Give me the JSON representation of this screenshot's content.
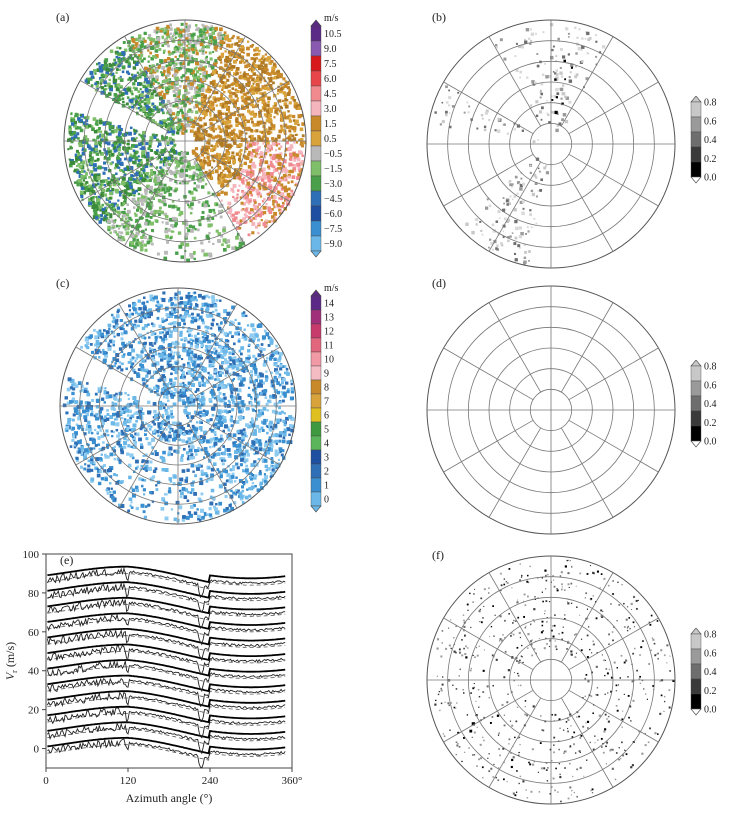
{
  "chart_data": [
    {
      "panel": "(a)",
      "type": "heatmap",
      "projection": "polar",
      "colorbar": {
        "unit": "m/s",
        "ticks": [
          "10.5",
          "9.0",
          "7.5",
          "6.0",
          "4.5",
          "3.0",
          "1.5",
          "0.5",
          "−0.5",
          "−1.5",
          "−3.0",
          "−4.5",
          "−6.0",
          "−7.5",
          "−9.0"
        ],
        "colors": [
          "#5b2a86",
          "#8a5ab0",
          "#d7191c",
          "#e8454a",
          "#f08a8f",
          "#f5b5bd",
          "#c8892a",
          "#d9a33c",
          "#b9b9b9",
          "#7fbf6a",
          "#4aa04a",
          "#2f6fb5",
          "#1f4fa0",
          "#3a8fd0",
          "#6bb8e8"
        ]
      },
      "grid_rings": 6,
      "grid_spokes": 12
    },
    {
      "panel": "(b)",
      "type": "heatmap",
      "projection": "polar",
      "colorbar": {
        "ticks": [
          "0.8",
          "0.6",
          "0.4",
          "0.2",
          "0.0"
        ],
        "colors": [
          "#c8c8c8",
          "#9a9a9a",
          "#6e6e6e",
          "#3a3a3a",
          "#000000"
        ]
      },
      "grid_rings": 6,
      "grid_spokes": 12
    },
    {
      "panel": "(c)",
      "type": "heatmap",
      "projection": "polar",
      "colorbar": {
        "unit": "m/s",
        "ticks": [
          "14",
          "13",
          "12",
          "11",
          "10",
          "9",
          "8",
          "7",
          "6",
          "5",
          "4",
          "3",
          "2",
          "1",
          "0"
        ],
        "colors": [
          "#5b2a86",
          "#a0307a",
          "#c73a6c",
          "#e2667e",
          "#f19aa6",
          "#f6bcc4",
          "#c8892a",
          "#d9a33c",
          "#e0c020",
          "#3f9a3f",
          "#5bb55b",
          "#1f4fa0",
          "#2f6fb5",
          "#3a8fd0",
          "#6bb8e8"
        ]
      },
      "grid_rings": 6,
      "grid_spokes": 12
    },
    {
      "panel": "(d)",
      "type": "heatmap",
      "projection": "polar",
      "colorbar": {
        "ticks": [
          "0.8",
          "0.6",
          "0.4",
          "0.2",
          "0.0"
        ],
        "colors": [
          "#c8c8c8",
          "#9a9a9a",
          "#6e6e6e",
          "#3a3a3a",
          "#000000"
        ]
      },
      "grid_rings": 6,
      "grid_spokes": 12
    },
    {
      "panel": "(e)",
      "type": "line",
      "xlabel": "Azimuth angle (°)",
      "ylabel": "V",
      "ylabel_sub": "r",
      "ylabel_unit": "(m/s)",
      "xlim": [
        0,
        360
      ],
      "ylim": [
        -10,
        100
      ],
      "xticks": [
        "0",
        "120",
        "240",
        "360°"
      ],
      "yticks": [
        "0",
        "20",
        "40",
        "60",
        "80",
        "100"
      ],
      "offsets": [
        0,
        8,
        16,
        24,
        32,
        40,
        48,
        56,
        64,
        72,
        80,
        88
      ]
    },
    {
      "panel": "(f)",
      "type": "heatmap",
      "projection": "polar",
      "colorbar": {
        "ticks": [
          "0.8",
          "0.6",
          "0.4",
          "0.2",
          "0.0"
        ],
        "colors": [
          "#c8c8c8",
          "#9a9a9a",
          "#6e6e6e",
          "#3a3a3a",
          "#000000"
        ]
      },
      "grid_rings": 6,
      "grid_spokes": 12
    }
  ]
}
